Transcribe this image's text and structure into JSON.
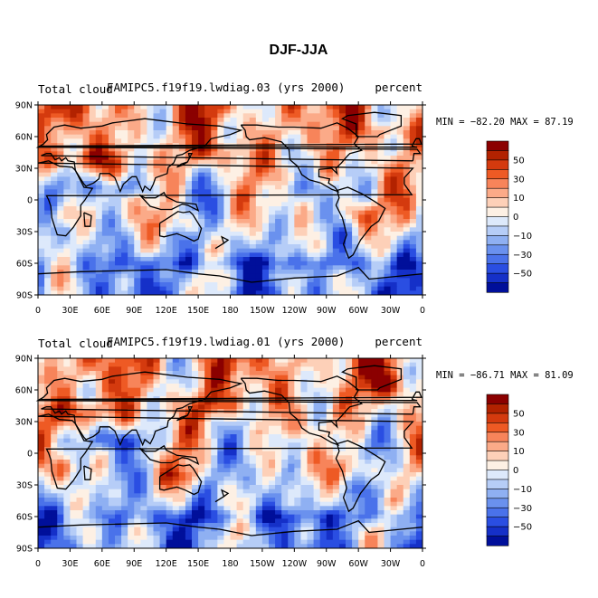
{
  "figure": {
    "title": "DJF-JJA"
  },
  "chart_data": [
    {
      "type": "heatmap",
      "variable": "Total cloud",
      "case": "FAMIPC5.f19f19.lwdiag.03 (yrs 2000)",
      "units": "percent",
      "stats": "MIN = −82.20 MAX =  87.19",
      "x_ticks": [
        "0",
        "30E",
        "60E",
        "90E",
        "120E",
        "150E",
        "180",
        "150W",
        "120W",
        "90W",
        "60W",
        "30W",
        "0"
      ],
      "y_ticks": [
        "90N",
        "60N",
        "30N",
        "0",
        "30S",
        "60S",
        "90S"
      ],
      "xlim": [
        0,
        360
      ],
      "ylim": [
        -90,
        90
      ],
      "seed": 3
    },
    {
      "type": "heatmap",
      "variable": "Total cloud",
      "case": "FAMIPC5.f19f19.lwdiag.01 (yrs 2000)",
      "units": "percent",
      "stats": "MIN = −86.71 MAX =  81.09",
      "x_ticks": [
        "0",
        "30E",
        "60E",
        "90E",
        "120E",
        "150E",
        "180",
        "150W",
        "120W",
        "90W",
        "60W",
        "30W",
        "0"
      ],
      "y_ticks": [
        "90N",
        "60N",
        "30N",
        "0",
        "30S",
        "60S",
        "90S"
      ],
      "xlim": [
        0,
        360
      ],
      "ylim": [
        -90,
        90
      ],
      "seed": 1
    }
  ],
  "colorbar": {
    "labels": [
      "50",
      "30",
      "10",
      "0",
      "−10",
      "−30",
      "−50"
    ],
    "colors": [
      "#8b0000",
      "#b22200",
      "#d43a0e",
      "#ee5a24",
      "#f7845a",
      "#fbaa88",
      "#fdd0b8",
      "#fdf0e4",
      "#dde9fb",
      "#b6cdf7",
      "#8fb0f2",
      "#6a91ee",
      "#4a72ea",
      "#2a4ee2",
      "#1530c8",
      "#000f9a"
    ]
  }
}
